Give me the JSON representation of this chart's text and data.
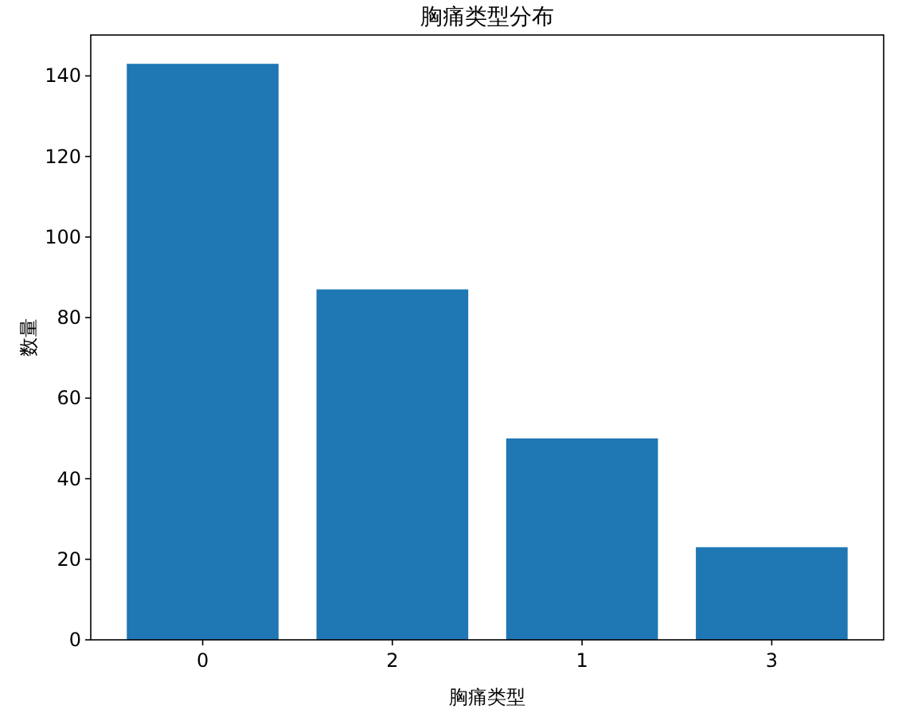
{
  "chart_data": {
    "type": "bar",
    "title": "胸痛类型分布",
    "xlabel": "胸痛类型",
    "ylabel": "数量",
    "categories": [
      "0",
      "2",
      "1",
      "3"
    ],
    "values": [
      143,
      87,
      50,
      23
    ],
    "color": "#1f77b4",
    "ylim": [
      0,
      150.15
    ],
    "yticks": [
      0,
      20,
      40,
      60,
      80,
      100,
      120,
      140
    ]
  }
}
